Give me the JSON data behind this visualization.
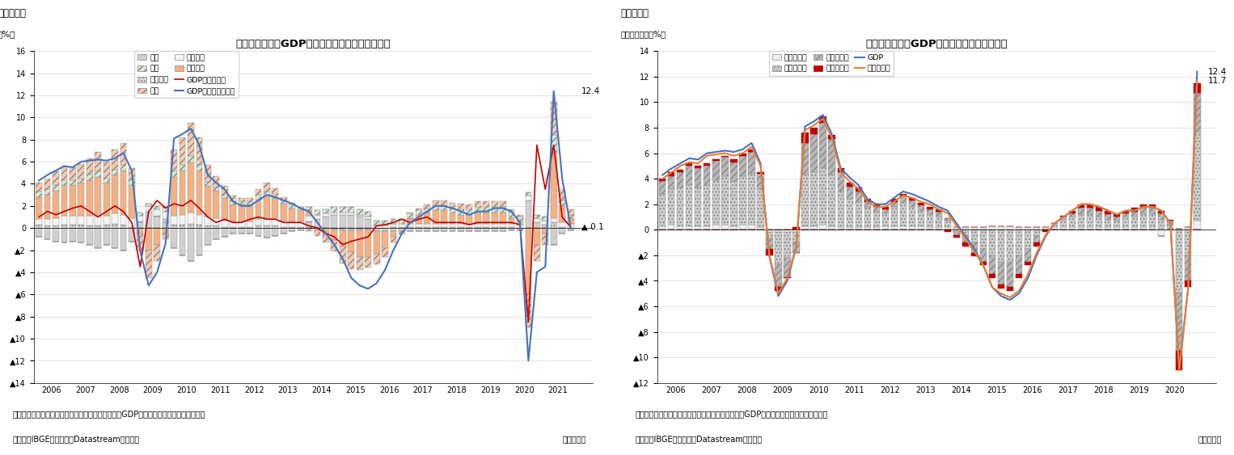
{
  "chart1": {
    "title": "ブラジルの実質GDP成長率（需要項目別寄与度）",
    "ylabel": "（％）",
    "fig_label": "（図表１）",
    "note1": "（注）未季節調整値、寄与度は前年同期比、在庫はGDPから各項目寄与度を除いた数値",
    "note2": "（資料）IBGEのデータをDatastreamより取得",
    "note3": "（四半期）",
    "ylim_min": -14,
    "ylim_max": 16,
    "annotation_right_gdp_yoy": "12.4",
    "annotation_right_gdp_qoq": "▲ 0.1",
    "colors": {
      "imports": "#d0d0d0",
      "inventories_hatch": "....",
      "inventories_color": "#e0e0e0",
      "gov_color": "#f0f0f0",
      "private_color": "#f4b183",
      "exports_color": "#d9e8c4",
      "exports_hatch": "////",
      "investment_color": "#f4b183",
      "investment_hatch": "////",
      "gdp_qoq_line": "#c00000",
      "gdp_yoy_line": "#4472c4"
    }
  },
  "chart2": {
    "title": "ブラジルの実質GDP成長率（産業別寄与度）",
    "ylabel": "（前年同期比、％）",
    "fig_label": "（図表２）",
    "note1": "（注）未季節調整値、寄与度は前年同期比、在庫はGDPから各項目寄与度を除いた数値",
    "note2": "（資料）IBGEのデータをDatastreamより取得",
    "note3": "（四半期）",
    "ylim_min": -12,
    "ylim_max": 14,
    "annotation_12_4": "12.4",
    "annotation_11_7": "11.7",
    "colors": {
      "tax_color": "#f0f0f0",
      "tertiary_color": "#d0d0d0",
      "tertiary_hatch": "....",
      "secondary_color": "#b0b0b0",
      "secondary_hatch": "////",
      "primary_color": "#c00000",
      "gdp_line": "#4472c4",
      "gva_line": "#ed7d31"
    }
  },
  "legend1_labels": [
    "輸入",
    "輸出",
    "在庫変動",
    "投資",
    "政府消費",
    "個人消費",
    "GDP（前期比）",
    "GDP（前年同期比）"
  ],
  "legend2_labels": [
    "税・補助金",
    "第三次産業",
    "第二次産業",
    "第一次産業",
    "GDP",
    "総付加価値"
  ]
}
